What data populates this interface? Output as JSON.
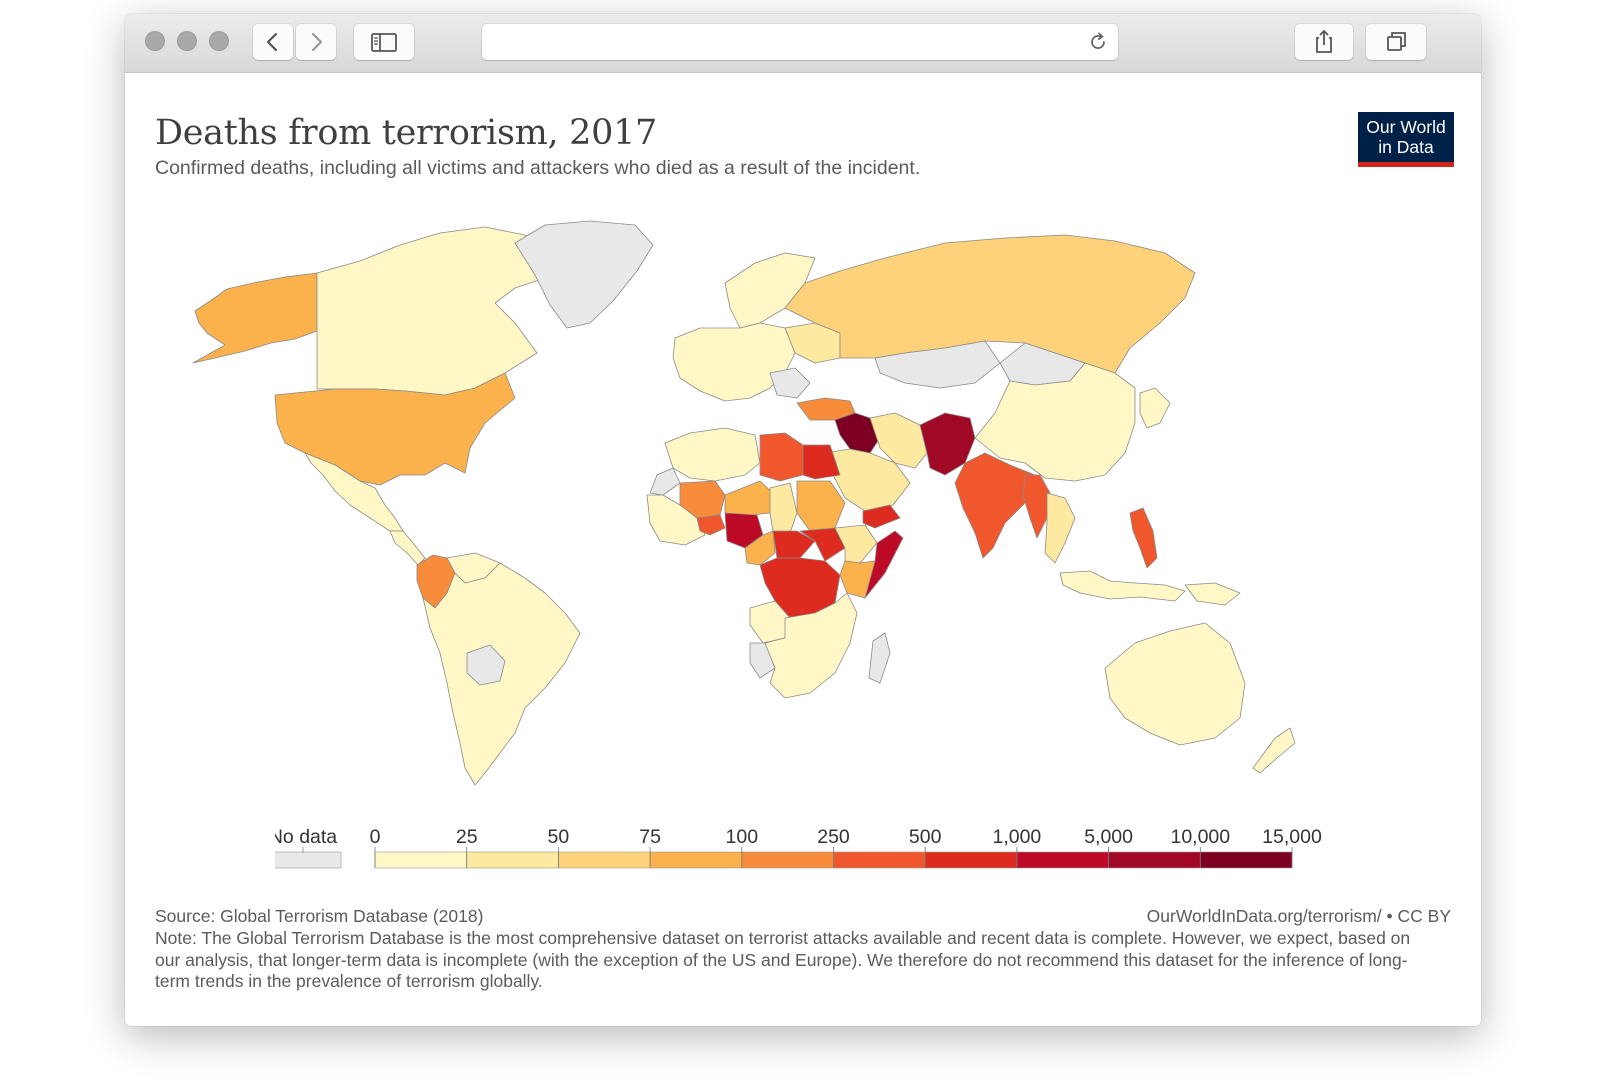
{
  "chart": {
    "title": "Deaths from terrorism, 2017",
    "subtitle": "Confirmed deaths, including all victims and attackers who died as a result of the incident.",
    "source": "Source: Global Terrorism Database (2018)",
    "credit": "OurWorldInData.org/terrorism/ • CC BY",
    "note": "Note: The Global Terrorism Database is the most comprehensive dataset on terrorist attacks available and recent data is complete. However, we expect, based on our analysis, that longer-term data is incomplete (with the exception of the US and Europe). We therefore do not recommend this dataset for the inference of long-term trends in the prevalence of terrorism globally."
  },
  "logo": {
    "line1": "Our World",
    "line2": "in Data"
  },
  "legend": {
    "no_data_label": "No data",
    "no_data_color": "#e8e8e8",
    "ticks": [
      "0",
      "25",
      "50",
      "75",
      "100",
      "250",
      "500",
      "1,000",
      "5,000",
      "10,000",
      "15,000"
    ],
    "colors": [
      "#fff8c6",
      "#fde9a0",
      "#fdd27a",
      "#fbb24d",
      "#f98c3a",
      "#f0572c",
      "#de2b20",
      "#bd0b27",
      "#a00825",
      "#7d0022"
    ]
  },
  "regions": [
    {
      "name": "alaska",
      "color": "#fbb24d"
    },
    {
      "name": "canada",
      "color": "#fff8c6"
    },
    {
      "name": "greenland",
      "color": "#e8e8e8"
    },
    {
      "name": "united-states",
      "color": "#fbb24d"
    },
    {
      "name": "mexico",
      "color": "#fff8c6"
    },
    {
      "name": "central-america",
      "color": "#fff8c6"
    },
    {
      "name": "colombia",
      "color": "#f98c3a"
    },
    {
      "name": "venezuela",
      "color": "#fff8c6"
    },
    {
      "name": "south-america",
      "color": "#fff8c6"
    },
    {
      "name": "bolivia",
      "color": "#e8e8e8"
    },
    {
      "name": "europe-west",
      "color": "#fff8c6"
    },
    {
      "name": "scandinavia",
      "color": "#fff8c6"
    },
    {
      "name": "ukraine",
      "color": "#fde9a0"
    },
    {
      "name": "balkans",
      "color": "#e8e8e8"
    },
    {
      "name": "russia",
      "color": "#fdd27a"
    },
    {
      "name": "turkey",
      "color": "#f98c3a"
    },
    {
      "name": "syria-iraq",
      "color": "#7d0022"
    },
    {
      "name": "iran",
      "color": "#fde9a0"
    },
    {
      "name": "saudi-arabia",
      "color": "#fde9a0"
    },
    {
      "name": "yemen",
      "color": "#de2b20"
    },
    {
      "name": "kazakhstan",
      "color": "#e8e8e8"
    },
    {
      "name": "mongolia",
      "color": "#e8e8e8"
    },
    {
      "name": "afghanistan-pakistan",
      "color": "#a00825"
    },
    {
      "name": "india",
      "color": "#f0572c"
    },
    {
      "name": "china",
      "color": "#fff8c6"
    },
    {
      "name": "myanmar",
      "color": "#f0572c"
    },
    {
      "name": "southeast-asia",
      "color": "#fde9a0"
    },
    {
      "name": "philippines",
      "color": "#f0572c"
    },
    {
      "name": "japan-korea",
      "color": "#fff8c6"
    },
    {
      "name": "indonesia",
      "color": "#fff8c6"
    },
    {
      "name": "papua",
      "color": "#fff8c6"
    },
    {
      "name": "australia",
      "color": "#fff8c6"
    },
    {
      "name": "new-zealand",
      "color": "#fff8c6"
    },
    {
      "name": "morocco-algeria",
      "color": "#fff8c6"
    },
    {
      "name": "western-sahara",
      "color": "#e8e8e8"
    },
    {
      "name": "libya",
      "color": "#f0572c"
    },
    {
      "name": "egypt",
      "color": "#de2b20"
    },
    {
      "name": "mali",
      "color": "#f98c3a"
    },
    {
      "name": "niger",
      "color": "#fbb24d"
    },
    {
      "name": "chad",
      "color": "#fde9a0"
    },
    {
      "name": "sudan",
      "color": "#fbb24d"
    },
    {
      "name": "west-africa",
      "color": "#fff8c6"
    },
    {
      "name": "burkina",
      "color": "#f0572c"
    },
    {
      "name": "nigeria",
      "color": "#bd0b27"
    },
    {
      "name": "cameroon",
      "color": "#fbb24d"
    },
    {
      "name": "car",
      "color": "#de2b20"
    },
    {
      "name": "south-sudan",
      "color": "#de2b20"
    },
    {
      "name": "ethiopia",
      "color": "#fde9a0"
    },
    {
      "name": "somalia",
      "color": "#bd0b27"
    },
    {
      "name": "kenya",
      "color": "#fbb24d"
    },
    {
      "name": "dr-congo",
      "color": "#de2b20"
    },
    {
      "name": "southern-africa",
      "color": "#fff8c6"
    },
    {
      "name": "angola",
      "color": "#fff8c6"
    },
    {
      "name": "namibia",
      "color": "#e8e8e8"
    },
    {
      "name": "madagascar",
      "color": "#e8e8e8"
    }
  ]
}
